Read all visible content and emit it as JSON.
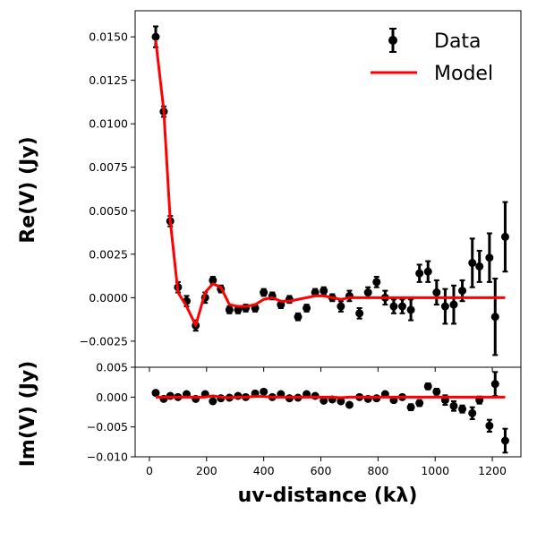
{
  "chart_data": {
    "type": "scatter",
    "xlabel": "uv-distance (kλ)",
    "xlim": [
      -50,
      1300
    ],
    "xticks": [
      0,
      200,
      400,
      600,
      800,
      1000,
      1200
    ],
    "xtick_labels": [
      "0",
      "200",
      "400",
      "600",
      "800",
      "1000",
      "1200"
    ],
    "legend": {
      "position": "top-right",
      "entries": [
        "Data",
        "Model"
      ]
    },
    "colors": {
      "data": "#000000",
      "model": "#ff0000"
    },
    "panels": [
      {
        "name": "real",
        "ylabel": "Re(V) (Jy)",
        "ylim": [
          -0.004,
          0.0165
        ],
        "yticks": [
          -0.0025,
          0,
          0.0025,
          0.005,
          0.0075,
          0.01,
          0.0125,
          0.015
        ],
        "ytick_labels": [
          "−0.0025",
          "0.0000",
          "0.0025",
          "0.0050",
          "0.0075",
          "0.0100",
          "0.0125",
          "0.0150"
        ],
        "series": [
          {
            "name": "Data",
            "style": "errorbar",
            "x": [
              22,
              50,
              73,
              100,
              130,
              162,
              195,
              222,
              250,
              280,
              310,
              337,
              370,
              400,
              430,
              460,
              490,
              520,
              550,
              580,
              610,
              640,
              670,
              700,
              735,
              765,
              795,
              825,
              855,
              885,
              915,
              945,
              975,
              1005,
              1035,
              1065,
              1095,
              1130,
              1155,
              1190,
              1210,
              1245
            ],
            "y": [
              0.015,
              0.0107,
              0.0044,
              0.0006,
              -0.0002,
              -0.0016,
              0.0,
              0.001,
              0.0005,
              -0.0007,
              -0.0007,
              -0.0006,
              -0.0006,
              0.0003,
              0.0001,
              -0.0004,
              -0.0001,
              -0.0011,
              -0.0006,
              0.0003,
              0.0004,
              0.0,
              -0.0005,
              0.0001,
              -0.0009,
              0.0003,
              0.0009,
              0.0,
              -0.0005,
              -0.0005,
              -0.0007,
              0.0014,
              0.0015,
              0.0003,
              -0.0005,
              -0.0004,
              0.0004,
              0.002,
              0.0018,
              0.0023,
              -0.0011,
              0.0035
            ],
            "yerr": [
              0.0006,
              0.0003,
              0.0003,
              0.0003,
              0.0003,
              0.0003,
              0.0003,
              0.0002,
              0.0002,
              0.0002,
              0.0002,
              0.0002,
              0.0002,
              0.0002,
              0.0002,
              0.0002,
              0.0002,
              0.0002,
              0.0002,
              0.0002,
              0.0002,
              0.0002,
              0.0003,
              0.0003,
              0.0003,
              0.0003,
              0.0003,
              0.0004,
              0.0004,
              0.0004,
              0.0006,
              0.0005,
              0.0006,
              0.0007,
              0.001,
              0.0011,
              0.0006,
              0.0014,
              0.0009,
              0.0014,
              0.0022,
              0.002
            ]
          },
          {
            "name": "Model",
            "style": "line",
            "x": [
              22,
              50,
              73,
              100,
              130,
              162,
              195,
              222,
              250,
              280,
              310,
              337,
              370,
              400,
              430,
              460,
              490,
              520,
              550,
              580,
              610,
              640,
              670,
              700,
              735,
              765,
              795,
              825,
              855,
              885,
              915,
              945,
              975,
              1005,
              1035,
              1065,
              1095,
              1130,
              1155,
              1190,
              1210,
              1245
            ],
            "y": [
              0.0148,
              0.0108,
              0.0044,
              0.0003,
              -0.0005,
              -0.0016,
              0.0003,
              0.0008,
              0.0006,
              -0.0004,
              -0.0005,
              -0.0005,
              -0.0004,
              -0.0001,
              0.0,
              -0.0002,
              -0.0002,
              -0.0001,
              0.0,
              0.0001,
              0.0001,
              0.0,
              -0.0001,
              0.0,
              0.0,
              0.0,
              0.0,
              0.0,
              0.0,
              0.0,
              0.0,
              0.0,
              0.0,
              0.0,
              0.0,
              0.0,
              0.0,
              0.0,
              0.0,
              0.0,
              0.0,
              0.0
            ]
          }
        ]
      },
      {
        "name": "imaginary",
        "ylabel": "Im(V) (Jy)",
        "ylim": [
          -0.01,
          0.005
        ],
        "yticks": [
          -0.01,
          -0.005,
          0,
          0.005
        ],
        "ytick_labels": [
          "−0.010",
          "−0.005",
          "0.000",
          "0.005"
        ],
        "series": [
          {
            "name": "Data",
            "style": "errorbar",
            "x": [
              22,
              50,
              73,
              100,
              130,
              162,
              195,
              222,
              250,
              280,
              310,
              337,
              370,
              400,
              430,
              460,
              490,
              520,
              550,
              580,
              610,
              640,
              670,
              700,
              735,
              765,
              795,
              825,
              855,
              885,
              915,
              945,
              975,
              1005,
              1035,
              1065,
              1095,
              1130,
              1155,
              1190,
              1210,
              1245
            ],
            "y": [
              0.0007,
              -0.0003,
              0.0002,
              0.0,
              0.0005,
              -0.0003,
              0.0005,
              -0.0007,
              -0.0002,
              -0.0001,
              0.0002,
              0.0,
              0.0006,
              0.0009,
              0.0,
              0.0005,
              -0.0002,
              -0.0001,
              0.0005,
              0.0002,
              -0.0006,
              -0.0004,
              -0.0007,
              -0.0013,
              0.0,
              -0.0003,
              -0.0002,
              0.0005,
              -0.0005,
              0.0,
              -0.0017,
              -0.001,
              0.0018,
              0.0009,
              -0.0005,
              -0.0015,
              -0.002,
              -0.0027,
              -0.0005,
              -0.0048,
              0.0022,
              -0.0073
            ],
            "yerr": [
              0.0003,
              0.0003,
              0.0003,
              0.0003,
              0.0003,
              0.0003,
              0.0003,
              0.0003,
              0.0003,
              0.0003,
              0.0003,
              0.0003,
              0.0003,
              0.0003,
              0.0003,
              0.0003,
              0.0003,
              0.0003,
              0.0003,
              0.0003,
              0.0003,
              0.0003,
              0.0003,
              0.0003,
              0.0003,
              0.0003,
              0.0003,
              0.0003,
              0.0003,
              0.0003,
              0.0005,
              0.0005,
              0.0005,
              0.0005,
              0.0008,
              0.0008,
              0.0006,
              0.001,
              0.0006,
              0.001,
              0.002,
              0.002
            ]
          },
          {
            "name": "Model",
            "style": "line",
            "x": [
              22,
              50,
              73,
              100,
              130,
              162,
              195,
              222,
              250,
              280,
              310,
              337,
              370,
              400,
              430,
              460,
              490,
              520,
              550,
              580,
              610,
              640,
              670,
              700,
              735,
              765,
              795,
              825,
              855,
              885,
              915,
              945,
              975,
              1005,
              1035,
              1065,
              1095,
              1130,
              1155,
              1190,
              1210,
              1245
            ],
            "y": [
              0.0,
              0.0,
              0.0,
              0.0,
              0.0,
              0.0,
              0.0,
              0.0002,
              0.0,
              -0.0001,
              0.0,
              0.0,
              0.0001,
              0.0001,
              0.0,
              0.0,
              0.0,
              0.0,
              0.0,
              0.0,
              0.0,
              0.0,
              -0.0001,
              0.0,
              0.0,
              0.0,
              0.0,
              0.0,
              0.0,
              0.0,
              0.0,
              0.0,
              0.0,
              0.0,
              0.0,
              0.0,
              0.0,
              0.0,
              0.0,
              0.0,
              0.0,
              0.0
            ]
          }
        ]
      }
    ]
  }
}
